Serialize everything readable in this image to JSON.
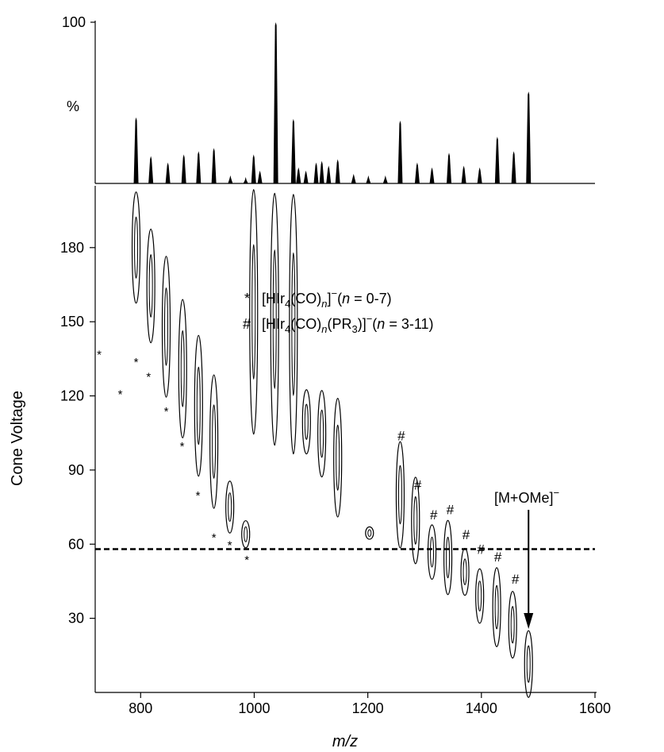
{
  "chart_data": [
    {
      "type": "spectrum",
      "ylabel": "%",
      "ylim": [
        0,
        100
      ],
      "yticks": [
        100
      ],
      "xlim": [
        720,
        1600
      ],
      "x": [
        792,
        818,
        848,
        876,
        902,
        929,
        958,
        985,
        999,
        1010,
        1038,
        1069,
        1078,
        1091,
        1109,
        1119,
        1131,
        1147,
        1175,
        1201,
        1231,
        1257,
        1287,
        1313,
        1343,
        1369,
        1397,
        1428,
        1457,
        1483
      ],
      "values": [
        41,
        17,
        13,
        18,
        20,
        22,
        5,
        4,
        18,
        8,
        100,
        40,
        10,
        8,
        13,
        14,
        11,
        15,
        6,
        5,
        5,
        39,
        13,
        10,
        19,
        11,
        10,
        29,
        20,
        57
      ],
      "color": "#000000"
    },
    {
      "type": "contour",
      "xlabel": "m/z",
      "ylabel": "Cone Voltage",
      "xlim": [
        720,
        1600
      ],
      "ylim": [
        0,
        205
      ],
      "xticks": [
        800,
        1000,
        1200,
        1400,
        1600
      ],
      "yticks": [
        30,
        60,
        90,
        120,
        150,
        180
      ],
      "x": [
        792,
        818,
        845,
        874,
        902,
        929,
        957,
        985,
        999,
        1036,
        1069,
        1092,
        1119,
        1147,
        1203,
        1257,
        1284,
        1313,
        1341,
        1371,
        1397,
        1427,
        1455,
        1483
      ],
      "y": [
        180,
        164.5,
        148,
        131,
        116,
        101.5,
        75,
        64,
        154,
        151,
        149,
        109.5,
        104.7,
        95,
        64.5,
        80,
        69.6,
        56.8,
        54.6,
        48.8,
        39,
        34.5,
        27.4,
        11.5
      ],
      "span": [
        45,
        46,
        57,
        56,
        57,
        54,
        21,
        11,
        99,
        102,
        105,
        26,
        35,
        48,
        5,
        43,
        35,
        22,
        30,
        19,
        22,
        32,
        27,
        27
      ],
      "star_markers": {
        "symbol": "*",
        "x": [
          727,
          764,
          792,
          814,
          845,
          873,
          901,
          929,
          957,
          987
        ],
        "y": [
          137,
          121,
          134,
          128,
          114,
          100,
          80,
          63,
          60,
          54
        ]
      },
      "hash_markers": {
        "symbol": "#",
        "x": [
          1259,
          1288,
          1316,
          1345,
          1373,
          1399,
          1429,
          1460
        ],
        "y": [
          104,
          84,
          72,
          74,
          64,
          58,
          55,
          46
        ]
      },
      "reference_line": 58,
      "legend": [
        [
          "[HIr",
          "4",
          "(CO)",
          "n",
          "]",
          "−",
          "(",
          "n",
          " = 0-7)"
        ],
        [
          "[HIr",
          "4",
          "(CO)",
          "n",
          "(PR",
          "3",
          ")]",
          "−",
          "(",
          "n",
          " = 3-11)"
        ]
      ],
      "arrow_annotation": {
        "text": [
          "[M+OMe]",
          "−"
        ],
        "x": 1483
      }
    }
  ]
}
